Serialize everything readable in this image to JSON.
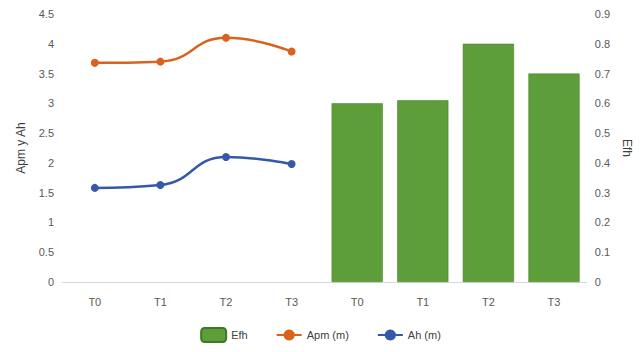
{
  "chart_data": {
    "type": "bar",
    "categories": [
      "T0",
      "T1",
      "T2",
      "T3",
      "T0",
      "T1",
      "T2",
      "T3"
    ],
    "series": [
      {
        "name": "Efh",
        "type": "bar",
        "axis": "y2",
        "color": "#5e9e3a",
        "values": [
          null,
          null,
          null,
          null,
          0.6,
          0.61,
          0.8,
          0.7
        ]
      },
      {
        "name": "Apm (m)",
        "type": "line",
        "color": "#d9631e",
        "marker": "circle",
        "line_style": "solid",
        "values": [
          3.68,
          3.7,
          4.1,
          3.87,
          null,
          null,
          null,
          null
        ]
      },
      {
        "name": "Ah (m)",
        "type": "line",
        "color": "#3559a8",
        "marker": "circle",
        "line_style": "solid",
        "values": [
          1.58,
          1.63,
          2.1,
          1.98,
          null,
          null,
          null,
          null
        ]
      }
    ],
    "y_label": "Apm y Ah",
    "y2_label": "Efh",
    "ylim": [
      0,
      4.5
    ],
    "yticks": [
      0,
      0.5,
      1,
      1.5,
      2,
      2.5,
      3,
      3.5,
      4,
      4.5
    ],
    "y2lim": [
      0,
      0.9
    ],
    "y2ticks": [
      0,
      0.1,
      0.2,
      0.3,
      0.4,
      0.5,
      0.6,
      0.7,
      0.8,
      0.9
    ],
    "grid": false,
    "legend": "bottom"
  }
}
